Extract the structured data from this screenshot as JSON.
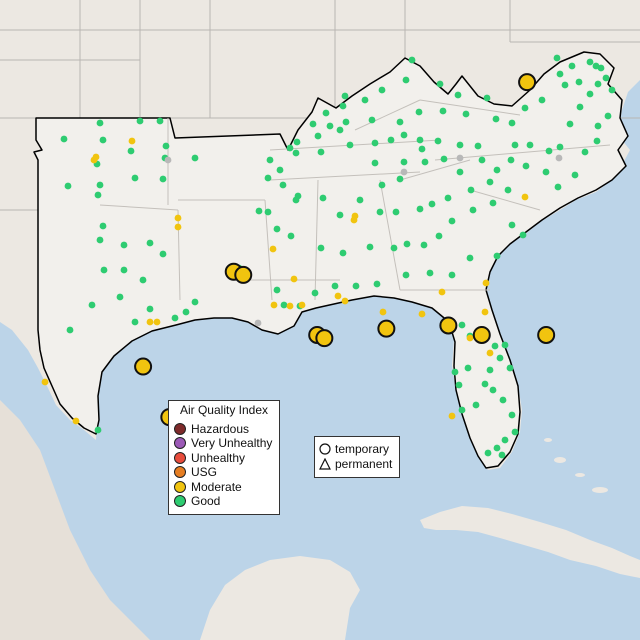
{
  "map": {
    "colors": {
      "water": "#bcd4e8",
      "land": "#ece8e2",
      "region": "#f2f0ec",
      "state_line": "#b9b6b2",
      "region_outline": "#000000"
    },
    "large_markers": [
      {
        "lon": -82.4,
        "lat": 38.4,
        "aqi": "Moderate",
        "monitor": "temporary"
      },
      {
        "lon": -94.7,
        "lat": 32.4,
        "aqi": "Moderate",
        "monitor": "temporary"
      },
      {
        "lon": -94.3,
        "lat": 32.3,
        "aqi": "Moderate",
        "monitor": "temporary"
      },
      {
        "lon": -91.2,
        "lat": 30.4,
        "aqi": "Moderate",
        "monitor": "temporary"
      },
      {
        "lon": -90.9,
        "lat": 30.3,
        "aqi": "Moderate",
        "monitor": "temporary"
      },
      {
        "lon": -88.3,
        "lat": 30.6,
        "aqi": "Moderate",
        "monitor": "temporary"
      },
      {
        "lon": -85.7,
        "lat": 30.7,
        "aqi": "Moderate",
        "monitor": "temporary"
      },
      {
        "lon": -84.3,
        "lat": 30.4,
        "aqi": "Moderate",
        "monitor": "temporary"
      },
      {
        "lon": -81.6,
        "lat": 30.4,
        "aqi": "Moderate",
        "monitor": "temporary"
      },
      {
        "lon": -98.5,
        "lat": 29.4,
        "aqi": "Moderate",
        "monitor": "temporary"
      },
      {
        "lon": -97.4,
        "lat": 27.8,
        "aqi": "Moderate",
        "monitor": "temporary"
      }
    ]
  },
  "legend": {
    "aqi_title": "Air Quality Index",
    "aqi_items": [
      {
        "label": "Hazardous",
        "color": "#7e2a2a"
      },
      {
        "label": "Very Unhealthy",
        "color": "#9b59b6"
      },
      {
        "label": "Unhealthy",
        "color": "#e74c3c"
      },
      {
        "label": "USG",
        "color": "#e67e22"
      },
      {
        "label": "Moderate",
        "color": "#f1c40f"
      },
      {
        "label": "Good",
        "color": "#2ecc71"
      }
    ],
    "monitor_items": [
      {
        "label": "temporary",
        "shape": "circle-icon"
      },
      {
        "label": "permanent",
        "shape": "triangle-icon"
      }
    ]
  }
}
